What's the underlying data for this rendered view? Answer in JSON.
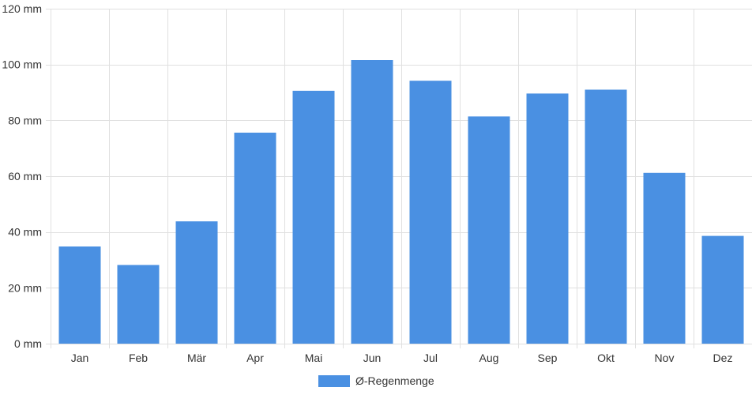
{
  "chart_data": {
    "type": "bar",
    "categories": [
      "Jan",
      "Feb",
      "Mär",
      "Apr",
      "Mai",
      "Jun",
      "Jul",
      "Aug",
      "Sep",
      "Okt",
      "Nov",
      "Dez"
    ],
    "series": [
      {
        "name": "Ø-Regenmenge",
        "values": [
          34.8,
          28.2,
          43.8,
          75.6,
          90.6,
          101.6,
          94.2,
          81.4,
          89.6,
          91.0,
          61.2,
          38.6
        ],
        "color": "#4a90e2"
      }
    ],
    "y_ticks": [
      "0 mm",
      "20 mm",
      "40 mm",
      "60 mm",
      "80 mm",
      "100 mm",
      "120 mm"
    ],
    "ylim": [
      0,
      120
    ],
    "grid": true,
    "legend_position": "bottom",
    "colors": {
      "grid": "#e0e0e0",
      "axis": "#cccccc",
      "text": "#333333"
    }
  }
}
